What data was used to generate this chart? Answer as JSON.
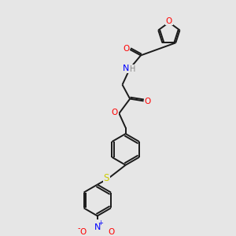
{
  "background_color": "#e6e6e6",
  "bond_color": "#1a1a1a",
  "atom_colors": {
    "O": "#ff0000",
    "N": "#0000ff",
    "S": "#cccc00",
    "H": "#888888",
    "C": "#1a1a1a"
  },
  "figsize": [
    3.0,
    3.0
  ],
  "dpi": 100
}
